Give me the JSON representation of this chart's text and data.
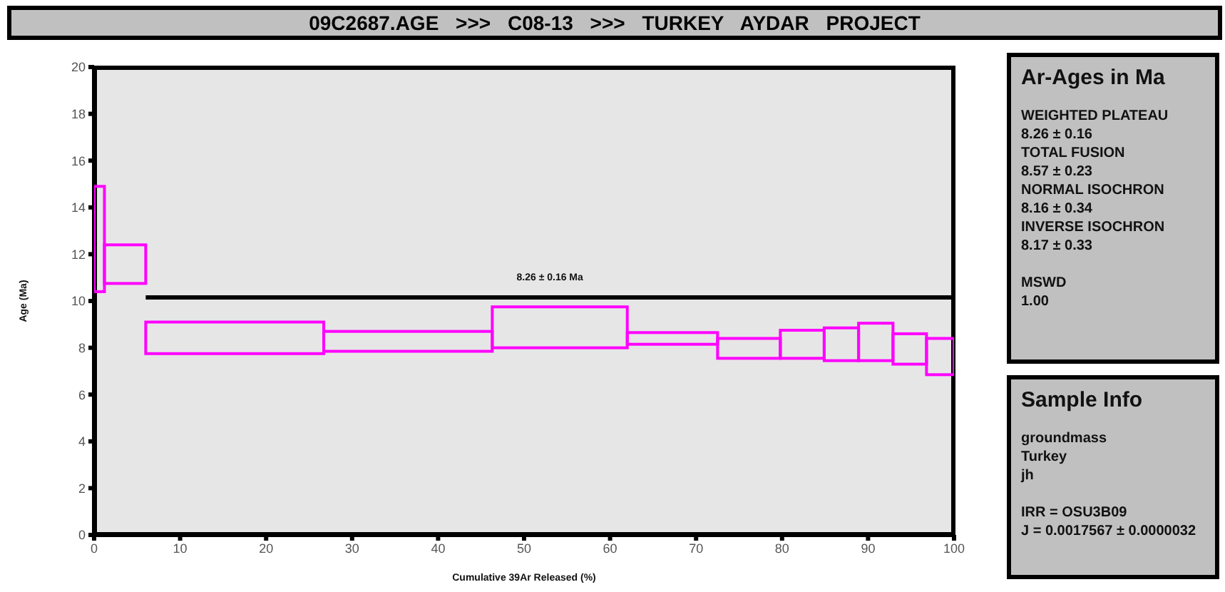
{
  "chart_data": {
    "type": "histogram",
    "title": "09C2687.AGE >>> C08-13 >>> TURKEY AYDAR PROJECT",
    "xlabel": "Cumulative 39Ar Released (%)",
    "ylabel": "Age (Ma)",
    "series": [
      {
        "color": "#ff00ff",
        "bins": [
          0,
          1.2,
          6.0,
          26.7,
          46.3,
          62.0,
          72.5,
          79.8,
          84.9,
          88.9,
          92.9,
          96.8,
          100
        ],
        "base": [
          10.4,
          10.75,
          7.75,
          7.85,
          8.0,
          8.15,
          7.55,
          7.55,
          7.45,
          7.45,
          7.3,
          6.85
        ],
        "values": [
          4.5,
          1.65,
          1.35,
          0.85,
          1.75,
          0.5,
          0.85,
          1.2,
          1.4,
          1.6,
          1.3,
          1.55
        ]
      },
      {
        "type": "line",
        "color": "#000000",
        "x": [
          6.0,
          100
        ],
        "values": [
          10.15,
          10.15
        ]
      }
    ],
    "annotations": [
      {
        "text": "8.26 ± 0.16 Ma",
        "x": 53,
        "y": 10.15
      },
      "Ar-Ages in Ma",
      "WEIGHTED PLATEAU",
      "8.26 ± 0.16",
      "TOTAL FUSION",
      "8.57 ± 0.23",
      "NORMAL ISOCHRON",
      "8.16 ± 0.34",
      "INVERSE ISOCHRON",
      "8.17 ± 0.33",
      "MSWD",
      "1.00",
      "Sample Info",
      "groundmass",
      "Turkey",
      "jh",
      "IRR = OSU3B09",
      "J = 0.0017567 ± 0.0000032"
    ],
    "xlim": [
      0,
      100
    ],
    "xticks": [
      0,
      10,
      20,
      30,
      40,
      50,
      60,
      70,
      80,
      90,
      100
    ],
    "ylim": [
      0,
      20
    ],
    "yticks": [
      0,
      2,
      4,
      6,
      8,
      10,
      12,
      14,
      16,
      18,
      20
    ],
    "grid": false,
    "legend": false,
    "marker": "none"
  }
}
